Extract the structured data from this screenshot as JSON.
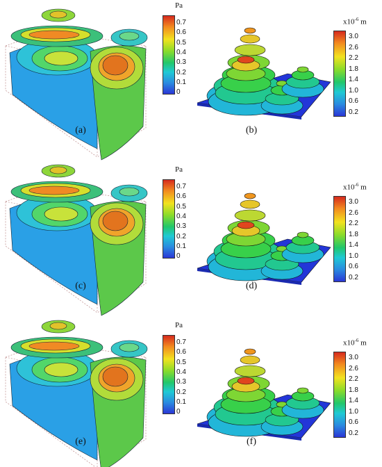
{
  "figure": {
    "rows": [
      {
        "left_caption": "(a)",
        "right_caption": "(b)"
      },
      {
        "left_caption": "(c)",
        "right_caption": "(d)"
      },
      {
        "left_caption": "(e)",
        "right_caption": "(f)"
      }
    ],
    "pressure_colorbar": {
      "unit": "Pa",
      "ticks": [
        "0.7",
        "0.6",
        "0.5",
        "0.4",
        "0.3",
        "0.2",
        "0.1",
        "0"
      ]
    },
    "displacement_colorbar": {
      "unit_prefix": "x10",
      "unit_exponent": "-6",
      "unit_suffix": " m",
      "ticks": [
        "3.0",
        "2.6",
        "2.2",
        "1.8",
        "1.4",
        "1.0",
        "0.6",
        "0.2"
      ]
    }
  }
}
